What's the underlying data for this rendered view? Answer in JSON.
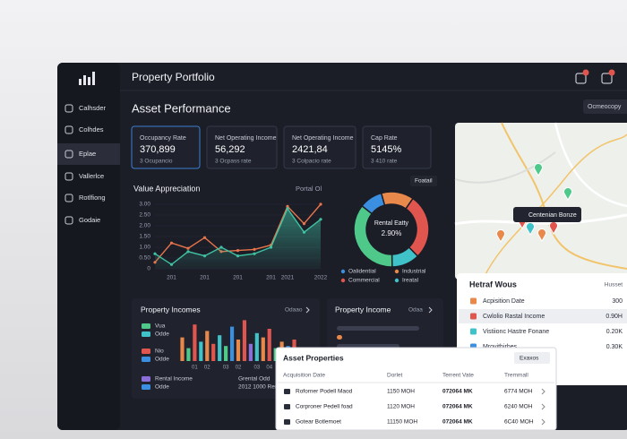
{
  "header": {
    "title": "Property Portfolio"
  },
  "sidebar": {
    "items": [
      "Calhsder",
      "Colhdes",
      "Eplae",
      "Vallerlce",
      "Rotlfiong",
      "Godaie"
    ]
  },
  "section_title": "Asset Performance",
  "top_button": "Ocmeocopy",
  "kpis": [
    {
      "label": "Occupancy Rate",
      "value": "370,899",
      "note": "3 Ocupancio"
    },
    {
      "label": "Net Operating Income",
      "value": "56,292",
      "note": "3 Ocpass rate"
    },
    {
      "label": "Net Operating Income",
      "value": "2421,84",
      "note": "3 Colpacio rate"
    },
    {
      "label": "Cap Rate",
      "value": "5145%",
      "note": "3 410 rate"
    }
  ],
  "chart_data": [
    {
      "type": "line",
      "title": "Value Appreciation",
      "label": "Portal Ol",
      "categories": [
        null,
        "201",
        null,
        "201",
        null,
        "201",
        null,
        "201",
        "2021",
        null,
        "2022"
      ],
      "ylim": [
        0,
        3
      ],
      "yticks": [
        0,
        {
          "value": 0.5,
          "label": "0.50"
        },
        {
          "value": 1,
          "label": "1.00"
        },
        {
          "value": 1.5,
          "label": "1.50"
        },
        {
          "value": 2,
          "label": "2.00"
        },
        {
          "value": 2.5,
          "label": "2.50"
        },
        {
          "value": 3,
          "label": "3.00"
        }
      ],
      "series": [
        {
          "color": "#e8744a",
          "values": [
            0.3,
            1.2,
            0.95,
            1.45,
            0.8,
            0.85,
            0.9,
            1.1,
            2.9,
            2.1,
            3.0
          ]
        },
        {
          "color": "#3fc2a2",
          "area": true,
          "values": [
            0.7,
            0.2,
            0.8,
            0.6,
            1.0,
            0.6,
            0.7,
            1.0,
            2.8,
            1.7,
            2.3
          ]
        }
      ]
    },
    {
      "type": "pie",
      "center_title": "Rental Eatty",
      "center_value": "2.90%",
      "tag": "Foatail",
      "categories": [
        "Oalidential",
        "Industrial",
        "Commercial",
        "Ireatal",
        null
      ],
      "colors": [
        "#3b8fe0",
        "#e8884a",
        "#e0564e",
        "#3fc2c8",
        "#4fc98a"
      ],
      "values": [
        10,
        14,
        28,
        12,
        36
      ]
    },
    {
      "type": "bar",
      "title": "Property Incomes",
      "action": "Odaao",
      "legend": [
        {
          "label": "Vua",
          "color": "#4fc98a"
        },
        {
          "label": "Odde",
          "color": "#3fc2c8"
        },
        {
          "label": "Nio",
          "color": "#e0564e"
        },
        {
          "label": "Odde",
          "color": "#3b8fe0"
        },
        {
          "label": "Rental Income",
          "color": "#8b6fd6"
        },
        {
          "label": "Odde",
          "color": "#3b8fe0"
        }
      ],
      "notes": [
        "Grental Odd",
        "2012 1000 Rental"
      ],
      "ylim": [
        0,
        100
      ],
      "categories": [
        null,
        null,
        "01",
        null,
        "02",
        null,
        null,
        "03",
        null,
        "02",
        null,
        null,
        "03",
        null,
        "04",
        null,
        null,
        "05",
        null
      ],
      "colors": [
        "#e8884a",
        "#4fc98a",
        "#e0564e",
        "#3fc2c8",
        "#e8884a",
        "#e0564e",
        "#3fc2c8",
        "#4fc98a",
        "#3b8fe0",
        "#e8884a",
        "#e0564e",
        "#8b6fd6",
        "#3fc2c8",
        "#e8884a",
        "#e0564e",
        "#4fc98a",
        "#e8884a",
        "#3b8fe0",
        "#e0564e"
      ],
      "values": [
        55,
        30,
        85,
        45,
        70,
        40,
        60,
        35,
        80,
        50,
        95,
        40,
        65,
        55,
        75,
        30,
        45,
        35,
        50
      ]
    }
  ],
  "property_income": {
    "title": "Property Income",
    "action": "Odaa"
  },
  "map": {
    "tooltip": "Centenian Bonze"
  },
  "side_table": {
    "title": "Hetraf Wous",
    "action": "Husset",
    "rows": [
      [
        "Acpisition Date",
        "300"
      ],
      [
        "Cwlolio Rastal Income",
        "0.90H"
      ],
      [
        "Vistiionc Hastre Fonane",
        "0.20K"
      ],
      [
        "Mrovithirhes",
        "0.30K"
      ]
    ]
  },
  "asset_table": {
    "title": "Asset Properties",
    "action": "Exaxos",
    "columns": [
      "Acquisition Date",
      "Dorlet",
      "Terrent Vate",
      "Tremmall"
    ],
    "rows": [
      [
        "Roforner Podell Maod",
        "1150 MOH",
        "072064 MK",
        "6774 MOH"
      ],
      [
        "Corproner Pedell foad",
        "1120 MOH",
        "072064 MK",
        "6240 MOH"
      ],
      [
        "Gotear Botlemoet",
        "11150 MOH",
        "072064 MK",
        "6C40 MOH"
      ]
    ]
  }
}
